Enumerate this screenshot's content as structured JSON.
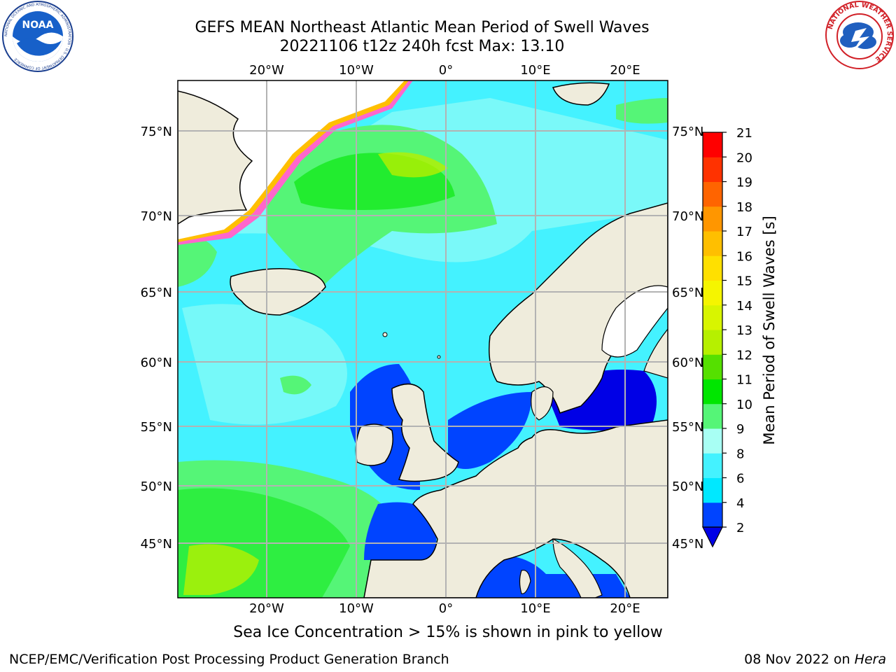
{
  "title": {
    "line1": "GEFS MEAN Northeast Atlantic Mean Period of Swell Waves",
    "line2": "20221106 t12z 240h fcst   Max: 13.10"
  },
  "logos": {
    "left": {
      "name": "noaa-logo",
      "text": "NOAA",
      "ring_text": "NATIONAL OCEANIC AND ATMOSPHERIC ADMINISTRATION · U.S. DEPARTMENT OF COMMERCE"
    },
    "right": {
      "name": "nws-logo",
      "ring_text": "NATIONAL WEATHER SERVICE"
    }
  },
  "map": {
    "lon_labels": [
      "20°W",
      "10°W",
      "0°",
      "10°E",
      "20°E"
    ],
    "lat_labels": [
      "75°N",
      "70°N",
      "65°N",
      "60°N",
      "55°N",
      "50°N",
      "45°N"
    ],
    "land_color": "#efecdc",
    "ice_note": "Sea Ice Concentration > 15% is shown in pink to yellow"
  },
  "colorbar": {
    "label": "Mean Period of Swell Waves [s]",
    "ticks": [
      "2",
      "4",
      "6",
      "8",
      "9",
      "10",
      "11",
      "12",
      "13",
      "14",
      "15",
      "16",
      "17",
      "18",
      "19",
      "20",
      "21"
    ],
    "colors": [
      "#0044ff",
      "#00e8ff",
      "#44f2ff",
      "#a8fff4",
      "#55f577",
      "#00e600",
      "#55e000",
      "#b6f000",
      "#d8f500",
      "#f5f500",
      "#ffe000",
      "#ffbf00",
      "#ff9600",
      "#ff6400",
      "#ff3200",
      "#ff0000"
    ],
    "extend_color": "#0000e6"
  },
  "footer": {
    "left": "NCEP/EMC/Verification Post Processing Product Generation Branch",
    "right_date": "08 Nov 2022 on ",
    "right_host": "Hera"
  }
}
